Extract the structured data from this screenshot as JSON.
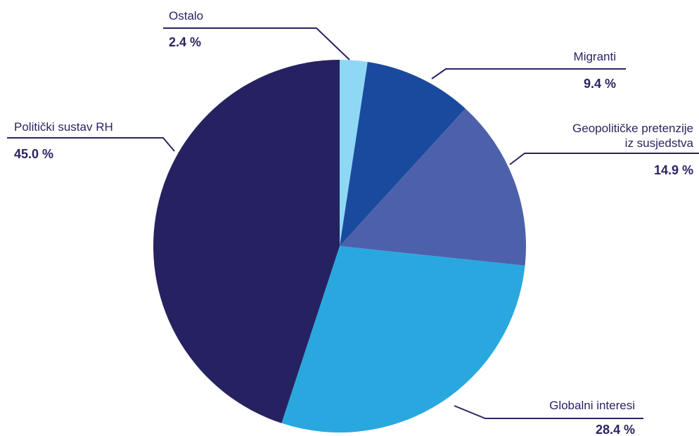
{
  "chart_data": {
    "type": "pie",
    "start_angle_deg": 0,
    "direction": "clockwise",
    "slices": [
      {
        "label": [
          "Ostalo"
        ],
        "value": 2.4,
        "pct_label": "2.4 %",
        "color": "#8fd8f5"
      },
      {
        "label": [
          "Migranti"
        ],
        "value": 9.4,
        "pct_label": "9.4 %",
        "color": "#1a4a9e"
      },
      {
        "label": [
          "Geopolitičke pretenzije",
          "iz susjedstva"
        ],
        "value": 14.9,
        "pct_label": "14.9 %",
        "color": "#4d61ab"
      },
      {
        "label": [
          "Globalni interesi"
        ],
        "value": 28.4,
        "pct_label": "28.4 %",
        "color": "#29a8e0"
      },
      {
        "label": [
          "Politički sustav RH"
        ],
        "value": 45.0,
        "pct_label": "45.0 %",
        "color": "#262261"
      }
    ]
  }
}
